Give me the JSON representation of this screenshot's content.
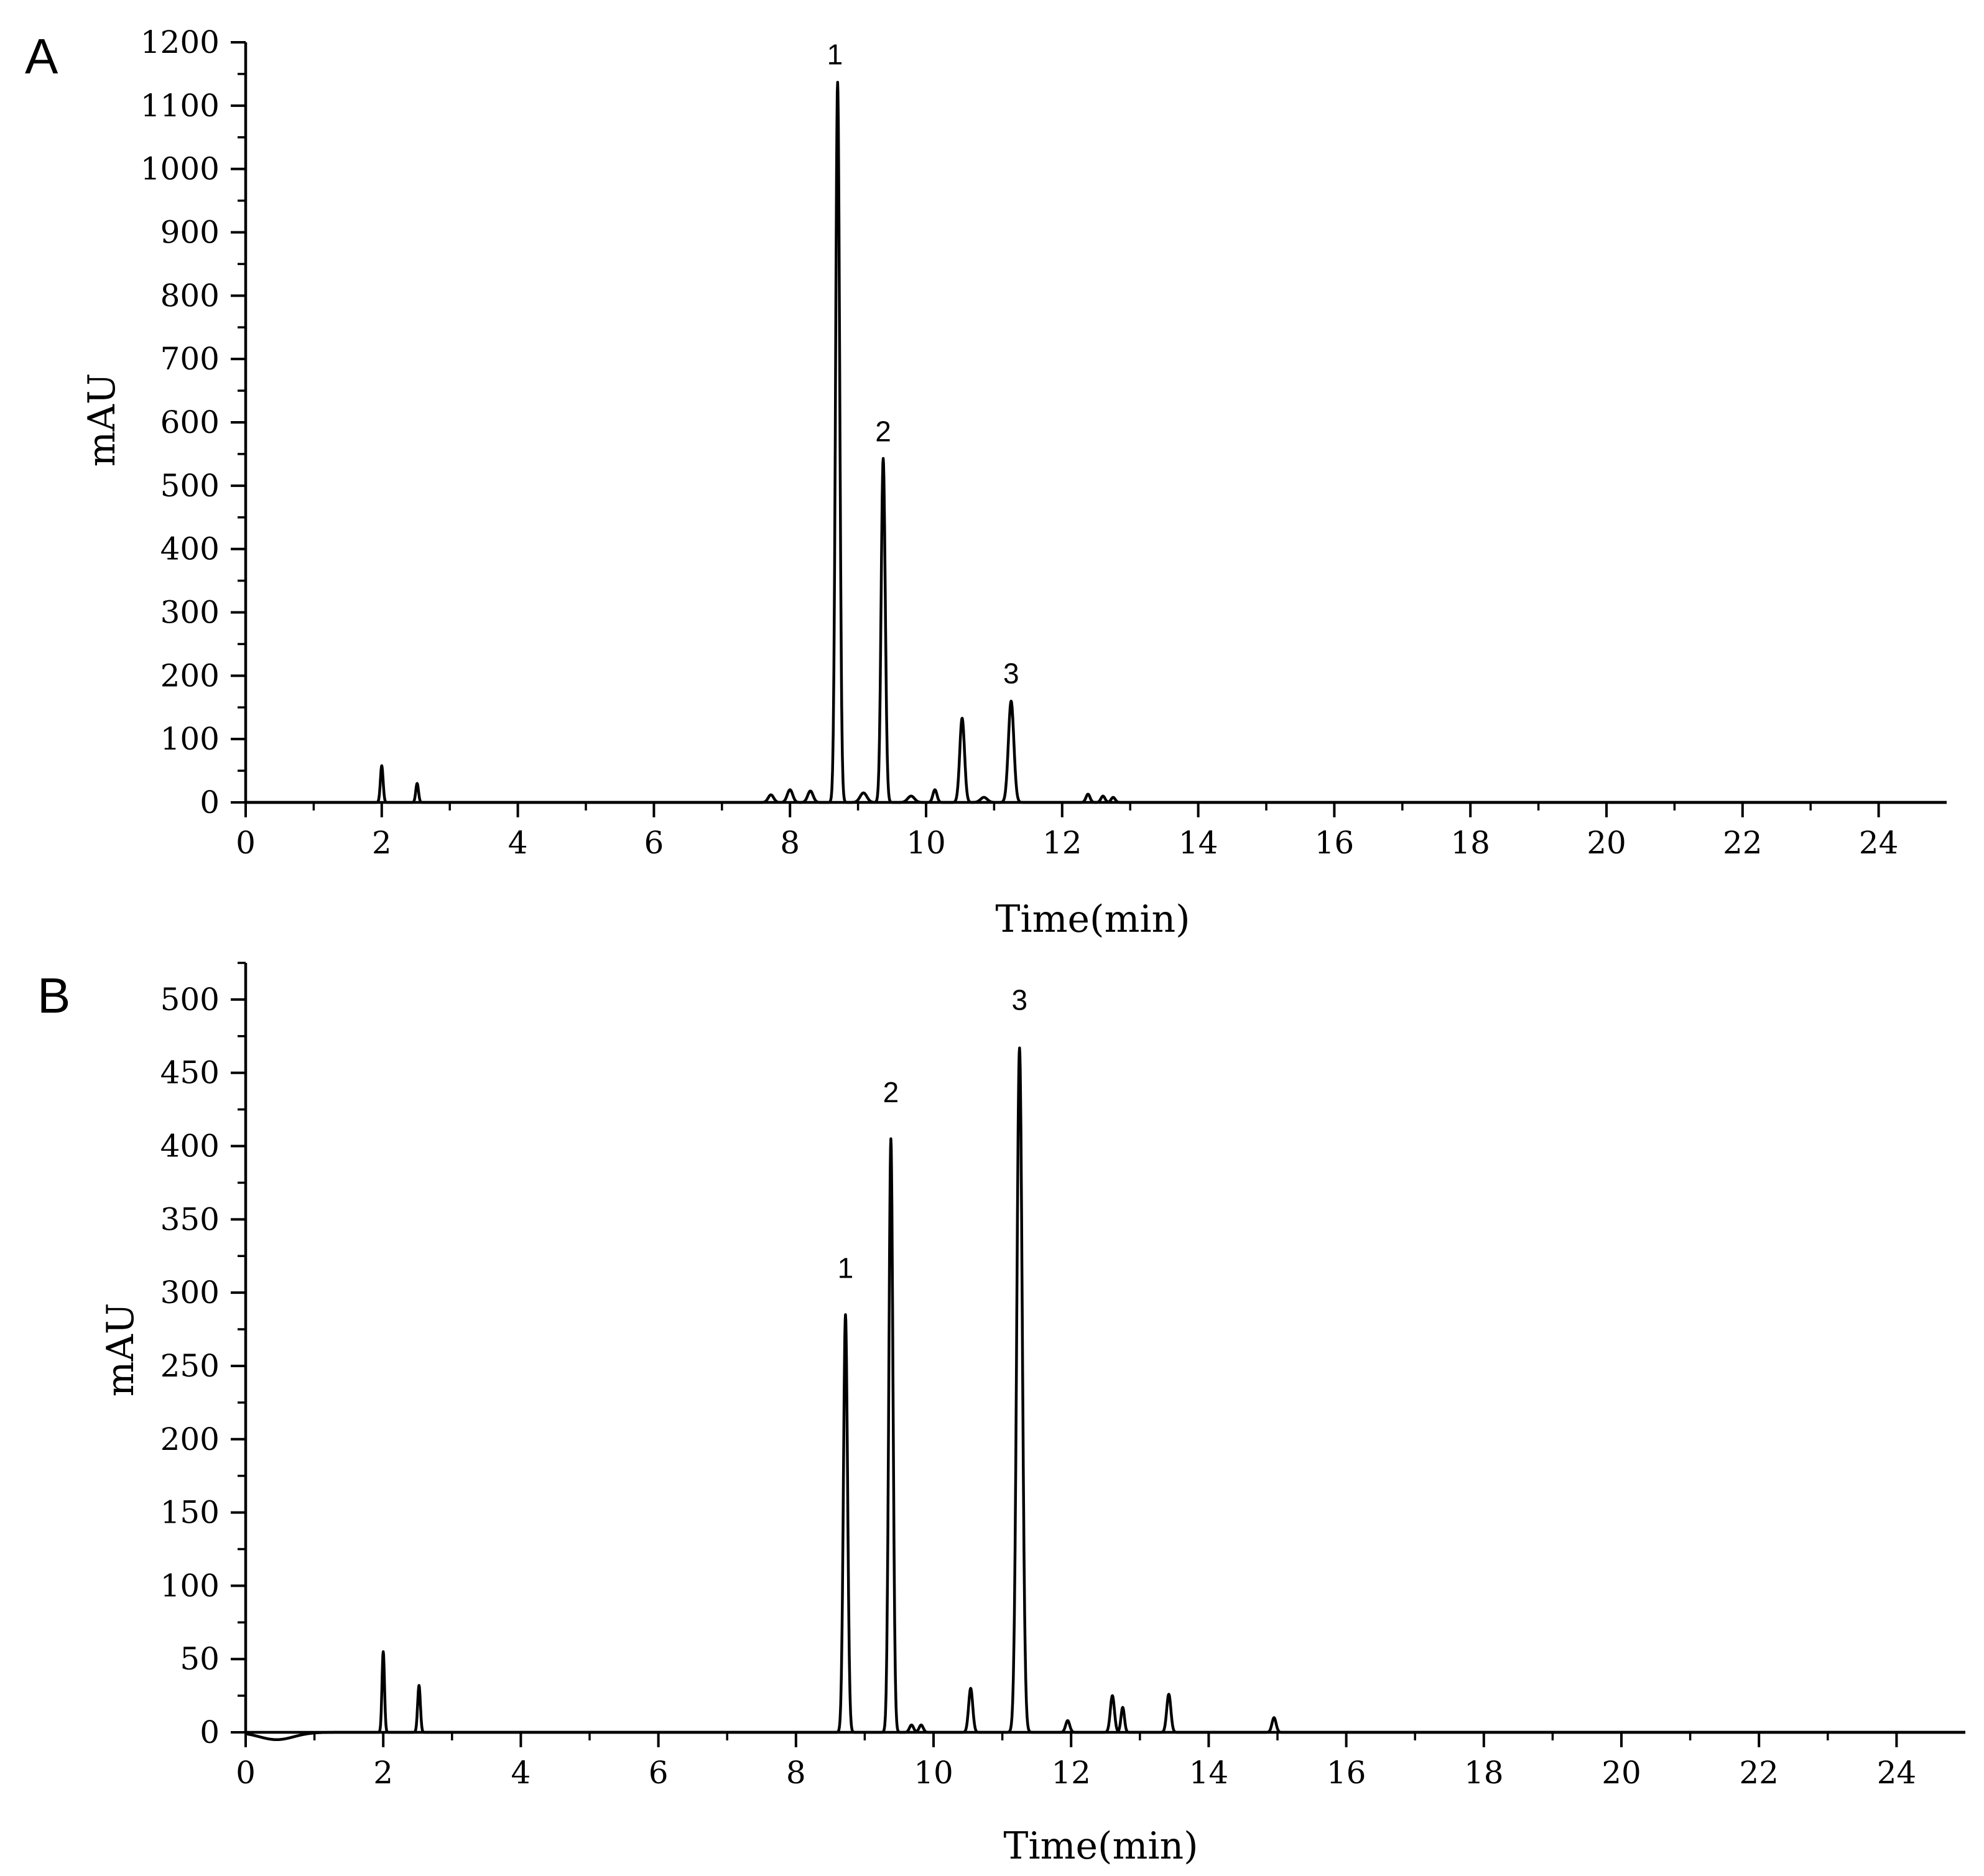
{
  "chart_data": [
    {
      "panel_label": "A",
      "type": "line",
      "xlabel": "Time(min)",
      "ylabel": "mAU",
      "xlim": [
        0,
        25
      ],
      "ylim": [
        0,
        1200
      ],
      "xticks": [
        0,
        2,
        4,
        6,
        8,
        10,
        12,
        14,
        16,
        18,
        20,
        22,
        24
      ],
      "yticks": [
        0,
        100,
        200,
        300,
        400,
        500,
        600,
        700,
        800,
        900,
        1000,
        1100,
        1200
      ],
      "grid": false,
      "baseline": 0,
      "series": [
        {
          "peaks": [
            {
              "x": 2.0,
              "y": 58,
              "w": 0.02
            },
            {
              "x": 2.52,
              "y": 30,
              "w": 0.02
            },
            {
              "x": 7.72,
              "y": 12,
              "w": 0.04
            },
            {
              "x": 8.0,
              "y": 20,
              "w": 0.04
            },
            {
              "x": 8.3,
              "y": 18,
              "w": 0.04
            },
            {
              "x": 8.7,
              "y": 1137,
              "w": 0.03
            },
            {
              "x": 9.08,
              "y": 15,
              "w": 0.05
            },
            {
              "x": 9.37,
              "y": 543,
              "w": 0.03
            },
            {
              "x": 9.78,
              "y": 10,
              "w": 0.05
            },
            {
              "x": 10.13,
              "y": 20,
              "w": 0.03
            },
            {
              "x": 10.53,
              "y": 133,
              "w": 0.035
            },
            {
              "x": 10.85,
              "y": 8,
              "w": 0.05
            },
            {
              "x": 11.25,
              "y": 160,
              "w": 0.04
            },
            {
              "x": 12.38,
              "y": 13,
              "w": 0.03
            },
            {
              "x": 12.6,
              "y": 10,
              "w": 0.03
            },
            {
              "x": 12.75,
              "y": 8,
              "w": 0.03
            }
          ]
        }
      ],
      "annotations": [
        {
          "text": "1",
          "x": 8.66,
          "y": 1165
        },
        {
          "text": "2",
          "x": 9.37,
          "y": 570
        },
        {
          "text": "3",
          "x": 11.25,
          "y": 188
        }
      ]
    },
    {
      "panel_label": "B",
      "type": "line",
      "xlabel": "Time(min)",
      "ylabel": "mAU",
      "xlim": [
        0,
        25
      ],
      "ylim": [
        0,
        525
      ],
      "xticks": [
        0,
        2,
        4,
        6,
        8,
        10,
        12,
        14,
        16,
        18,
        20,
        22,
        24
      ],
      "yticks": [
        0,
        50,
        100,
        150,
        200,
        250,
        300,
        350,
        400,
        450,
        500
      ],
      "grid": false,
      "baseline": 0,
      "series": [
        {
          "peaks": [
            {
              "x": 0.45,
              "y": -5,
              "w": 0.25
            },
            {
              "x": 2.0,
              "y": 55,
              "w": 0.018
            },
            {
              "x": 2.52,
              "y": 32,
              "w": 0.02
            },
            {
              "x": 8.72,
              "y": 285,
              "w": 0.03
            },
            {
              "x": 9.38,
              "y": 405,
              "w": 0.03
            },
            {
              "x": 9.68,
              "y": 5,
              "w": 0.03
            },
            {
              "x": 9.82,
              "y": 5,
              "w": 0.03
            },
            {
              "x": 10.54,
              "y": 30,
              "w": 0.03
            },
            {
              "x": 11.25,
              "y": 467,
              "w": 0.04
            },
            {
              "x": 11.95,
              "y": 8,
              "w": 0.03
            },
            {
              "x": 12.6,
              "y": 25,
              "w": 0.03
            },
            {
              "x": 12.75,
              "y": 17,
              "w": 0.025
            },
            {
              "x": 13.42,
              "y": 26,
              "w": 0.03
            },
            {
              "x": 14.95,
              "y": 10,
              "w": 0.03
            }
          ]
        }
      ],
      "annotations": [
        {
          "text": "1",
          "x": 8.72,
          "y": 310
        },
        {
          "text": "2",
          "x": 9.38,
          "y": 430
        },
        {
          "text": "3",
          "x": 11.25,
          "y": 493
        }
      ]
    }
  ]
}
